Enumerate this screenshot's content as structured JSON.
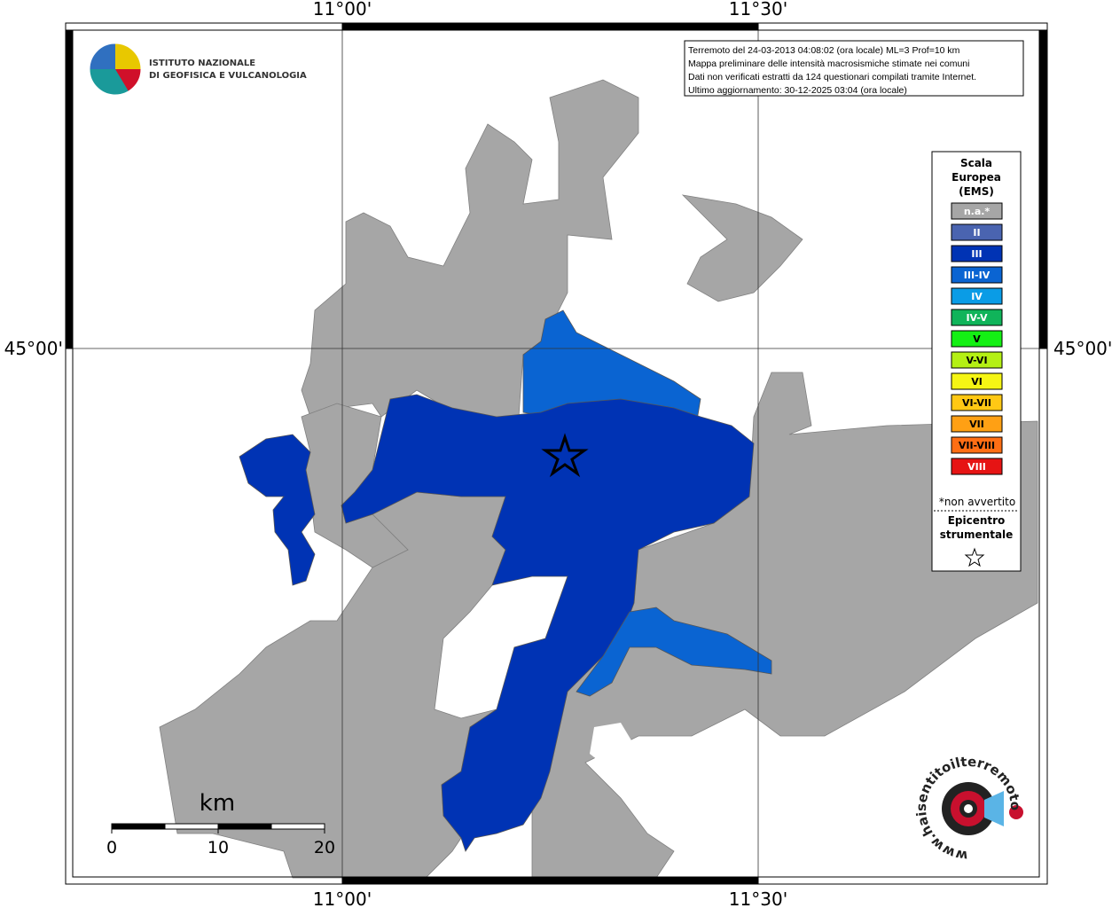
{
  "map": {
    "lon_labels": [
      "11°00'",
      "11°30'"
    ],
    "lat_labels": [
      "45°00'"
    ]
  },
  "logo": {
    "lines": [
      "ISTITUTO NAZIONALE",
      "DI GEOFISICA E VULCANOLOGIA"
    ]
  },
  "info": {
    "lines": [
      "Terremoto del 24-03-2013 04:08:02 (ora locale) ML=3 Prof=10 km",
      "Mappa preliminare delle intensità macrosismiche stimate nei comuni",
      "Dati non verificati estratti da 124 questionari compilati tramite Internet.",
      "Ultimo aggiornamento: 30-12-2025 03:04 (ora locale)"
    ]
  },
  "legend": {
    "title": [
      "Scala",
      "Europea",
      "(EMS)"
    ],
    "items": [
      {
        "label": "n.a.*",
        "color": "#a6a6a6"
      },
      {
        "label": "II",
        "color": "#4a64b0"
      },
      {
        "label": "III",
        "color": "#0033b4"
      },
      {
        "label": "III-IV",
        "color": "#0a64d2"
      },
      {
        "label": "IV",
        "color": "#0a9ce6"
      },
      {
        "label": "IV-V",
        "color": "#10b45a"
      },
      {
        "label": "V",
        "color": "#14f014"
      },
      {
        "label": "V-VI",
        "color": "#b4f014"
      },
      {
        "label": "VI",
        "color": "#f5f514"
      },
      {
        "label": "VI-VII",
        "color": "#ffc814"
      },
      {
        "label": "VII",
        "color": "#ffa014"
      },
      {
        "label": "VII-VIII",
        "color": "#ff6e14"
      },
      {
        "label": "VIII",
        "color": "#e61414"
      }
    ],
    "note": "*non avvertito",
    "epicenter": [
      "Epicentro",
      "strumentale"
    ]
  },
  "scale_bar": {
    "unit": "km",
    "ticks": [
      0,
      10,
      20
    ]
  },
  "watermark": "www.haisentitoilterremoto.it"
}
